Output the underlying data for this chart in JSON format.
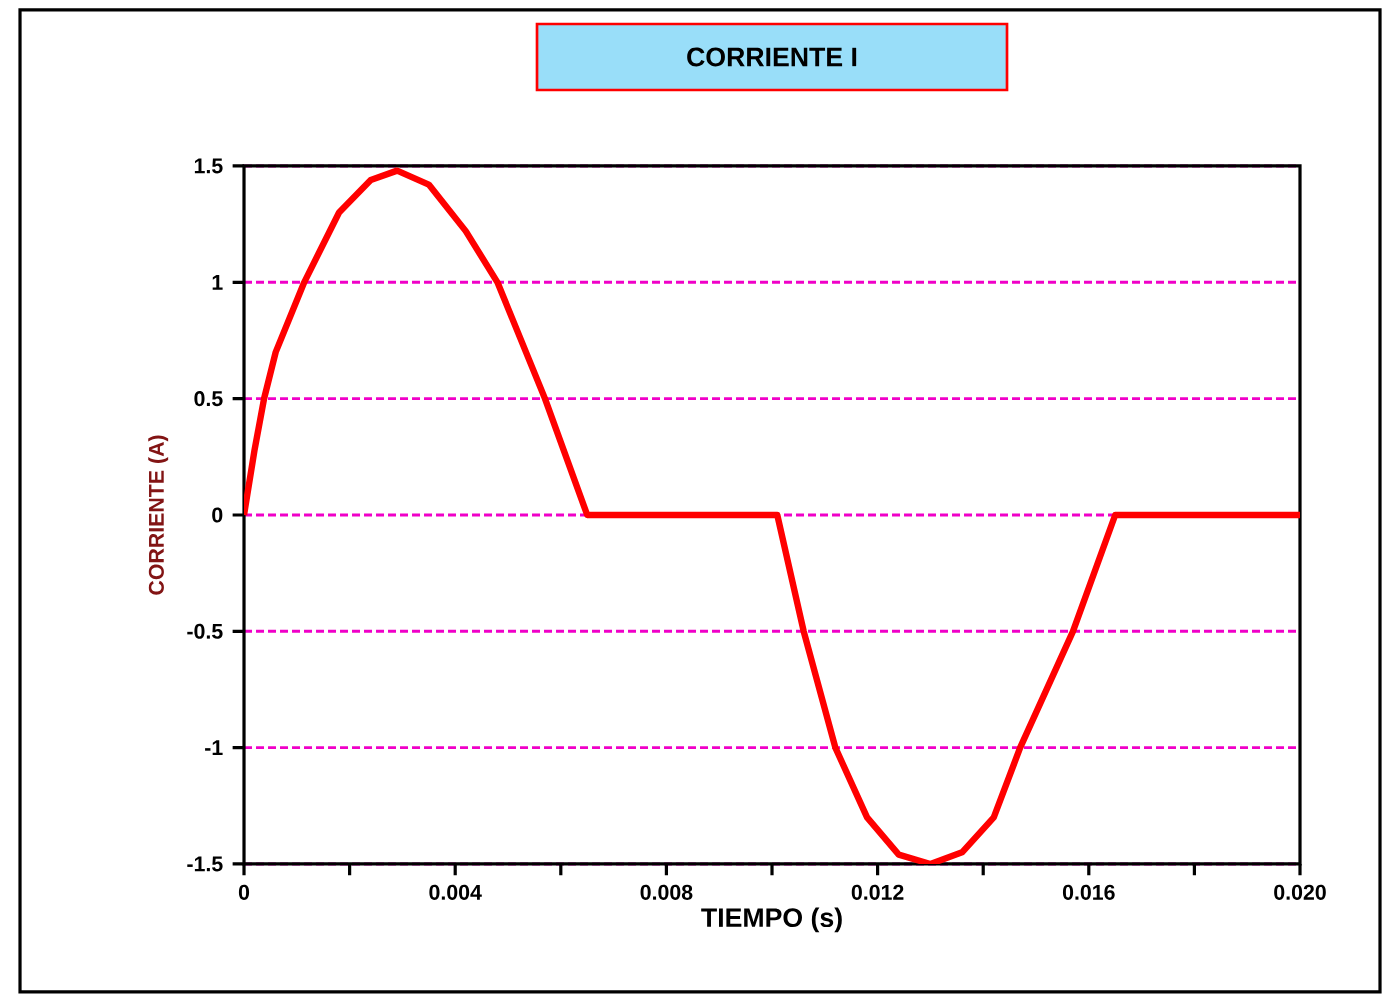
{
  "chart_data": {
    "type": "line",
    "title": "CORRIENTE   I",
    "xlabel": "TIEMPO (s)",
    "ylabel": "CORRIENTE  (A)",
    "x": [
      0,
      0.0002,
      0.00038,
      0.0006,
      0.00114,
      0.0018,
      0.0024,
      0.0029,
      0.0035,
      0.0042,
      0.0048,
      0.0057,
      0.0065,
      0.0101,
      0.0106,
      0.0112,
      0.0118,
      0.0124,
      0.013,
      0.0136,
      0.0142,
      0.0147,
      0.0157,
      0.0165,
      0.02
    ],
    "series": [
      {
        "color": "#ff0000",
        "values": [
          0,
          0.28,
          0.5,
          0.7,
          1.0,
          1.3,
          1.44,
          1.48,
          1.42,
          1.22,
          1.0,
          0.5,
          0,
          0,
          -0.5,
          -1.0,
          -1.3,
          -1.46,
          -1.5,
          -1.45,
          -1.3,
          -1.0,
          -0.5,
          0,
          0
        ]
      }
    ],
    "xlim": [
      0,
      0.02
    ],
    "ylim": [
      -1.5,
      1.5
    ],
    "xticks": [
      0,
      {
        "value": 0.002,
        "label": null
      },
      {
        "value": 0.004,
        "label": "0.004"
      },
      {
        "value": 0.006,
        "label": null
      },
      {
        "value": 0.008,
        "label": "0.008"
      },
      {
        "value": 0.01,
        "label": null
      },
      {
        "value": 0.012,
        "label": "0.012"
      },
      {
        "value": 0.014,
        "label": null
      },
      {
        "value": 0.016,
        "label": "0.016"
      },
      {
        "value": 0.018,
        "label": null
      },
      {
        "value": 0.02,
        "label": "0.020"
      }
    ],
    "yticks": [
      -1.5,
      -1,
      -0.5,
      0,
      0.5,
      1,
      1.5
    ],
    "grid": "y",
    "marker": "none",
    "line_style": "solid"
  }
}
